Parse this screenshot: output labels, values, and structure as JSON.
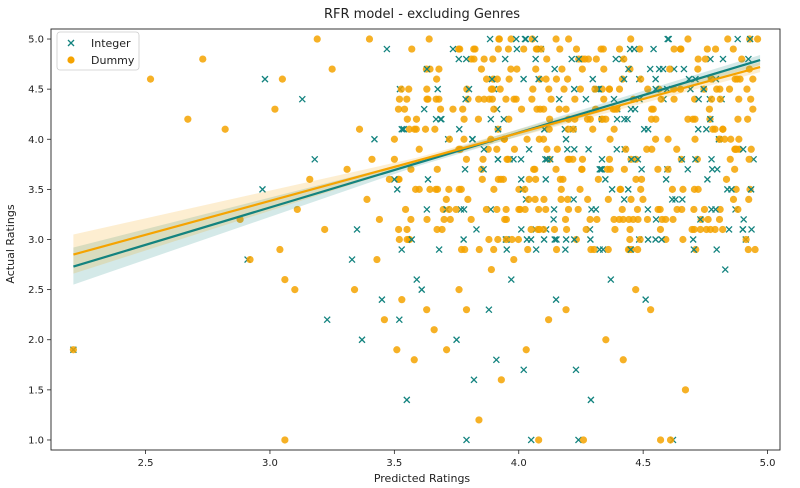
{
  "chart_data": {
    "type": "scatter",
    "title": "RFR model - excluding Genres",
    "xlabel": "Predicted Ratings",
    "ylabel": "Actual Ratings",
    "xlim": [
      2.12,
      5.05
    ],
    "ylim": [
      0.9,
      5.1
    ],
    "xticks": [
      2.5,
      3.0,
      3.5,
      4.0,
      4.5,
      5.0
    ],
    "xtick_labels": [
      "2.5",
      "3.0",
      "3.5",
      "4.0",
      "4.5",
      "5.0"
    ],
    "yticks": [
      1.0,
      1.5,
      2.0,
      2.5,
      3.0,
      3.5,
      4.0,
      4.5,
      5.0
    ],
    "ytick_labels": [
      "1.0",
      "1.5",
      "2.0",
      "2.5",
      "3.0",
      "3.5",
      "4.0",
      "4.5",
      "5.0"
    ],
    "grid": false,
    "legend_position": "top-left",
    "series": [
      {
        "name": "Integer",
        "marker": "x",
        "color": "#13837f",
        "points": [
          [
            2.21,
            1.9
          ],
          [
            2.97,
            3.5
          ],
          [
            2.98,
            4.6
          ],
          [
            2.91,
            2.8
          ],
          [
            3.13,
            4.4
          ],
          [
            3.18,
            3.8
          ],
          [
            3.23,
            2.2
          ],
          [
            3.33,
            2.8
          ],
          [
            3.37,
            2.0
          ],
          [
            3.45,
            2.4
          ],
          [
            3.52,
            2.2
          ],
          [
            3.55,
            1.4
          ],
          [
            3.57,
            3.0
          ],
          [
            3.61,
            2.5
          ],
          [
            3.68,
            2.9
          ],
          [
            3.75,
            2.0
          ],
          [
            3.79,
            1.0
          ],
          [
            3.82,
            1.6
          ],
          [
            3.88,
            2.3
          ],
          [
            3.91,
            1.8
          ],
          [
            3.97,
            2.6
          ],
          [
            4.02,
            1.7
          ],
          [
            4.05,
            1.0
          ],
          [
            4.11,
            3.1
          ],
          [
            4.15,
            2.4
          ],
          [
            4.23,
            1.7
          ],
          [
            4.24,
            1.0
          ],
          [
            4.29,
            1.4
          ],
          [
            4.37,
            2.6
          ],
          [
            4.45,
            2.9
          ],
          [
            4.51,
            2.4
          ],
          [
            4.62,
            1.0
          ],
          [
            4.71,
            3.8
          ],
          [
            4.83,
            2.7
          ],
          [
            4.88,
            5.0
          ],
          [
            3.42,
            4.0
          ],
          [
            3.5,
            3.6
          ],
          [
            3.62,
            4.3
          ],
          [
            3.71,
            3.3
          ],
          [
            3.8,
            4.5
          ],
          [
            3.86,
            3.9
          ],
          [
            3.94,
            4.2
          ],
          [
            4.01,
            3.6
          ],
          [
            4.08,
            4.6
          ],
          [
            4.14,
            3.2
          ],
          [
            4.19,
            4.0
          ],
          [
            4.27,
            4.4
          ],
          [
            4.33,
            3.7
          ],
          [
            4.39,
            4.8
          ],
          [
            4.44,
            3.5
          ],
          [
            4.52,
            4.1
          ],
          [
            4.58,
            4.7
          ],
          [
            4.63,
            3.4
          ],
          [
            4.69,
            4.5
          ],
          [
            4.77,
            4.2
          ],
          [
            4.93,
            5.0
          ],
          [
            3.47,
            4.9
          ],
          [
            3.99,
            5.0
          ],
          [
            3.35,
            3.1
          ],
          [
            3.59,
            2.6
          ],
          [
            3.83,
            3.1
          ],
          [
            4.07,
            2.9
          ],
          [
            4.31,
            3.3
          ],
          [
            4.55,
            3.0
          ]
        ]
      },
      {
        "name": "Dummy",
        "marker": "o",
        "color": "#f5a300",
        "points": [
          [
            2.21,
            1.9
          ],
          [
            2.52,
            4.6
          ],
          [
            2.67,
            4.2
          ],
          [
            2.73,
            4.8
          ],
          [
            2.82,
            4.1
          ],
          [
            2.88,
            3.2
          ],
          [
            2.92,
            2.8
          ],
          [
            3.02,
            4.3
          ],
          [
            3.04,
            2.9
          ],
          [
            3.06,
            2.6
          ],
          [
            3.06,
            1.0
          ],
          [
            3.1,
            2.5
          ],
          [
            3.05,
            4.6
          ],
          [
            3.11,
            3.3
          ],
          [
            3.16,
            3.6
          ],
          [
            3.19,
            5.0
          ],
          [
            3.22,
            3.1
          ],
          [
            3.25,
            4.7
          ],
          [
            3.31,
            3.7
          ],
          [
            3.34,
            2.5
          ],
          [
            3.39,
            3.4
          ],
          [
            3.43,
            2.8
          ],
          [
            3.46,
            2.2
          ],
          [
            3.51,
            1.9
          ],
          [
            3.53,
            2.4
          ],
          [
            3.58,
            1.8
          ],
          [
            3.63,
            2.3
          ],
          [
            3.66,
            2.1
          ],
          [
            3.71,
            1.9
          ],
          [
            3.76,
            2.5
          ],
          [
            3.79,
            2.3
          ],
          [
            3.84,
            1.2
          ],
          [
            3.89,
            2.7
          ],
          [
            3.93,
            1.6
          ],
          [
            3.98,
            2.8
          ],
          [
            4.03,
            1.9
          ],
          [
            4.08,
            1.0
          ],
          [
            4.12,
            2.2
          ],
          [
            4.19,
            2.3
          ],
          [
            4.26,
            1.0
          ],
          [
            4.35,
            2.0
          ],
          [
            4.42,
            1.8
          ],
          [
            4.47,
            2.5
          ],
          [
            4.53,
            2.3
          ],
          [
            4.57,
            1.0
          ],
          [
            4.61,
            1.0
          ],
          [
            4.67,
            1.5
          ],
          [
            4.73,
            3.1
          ],
          [
            4.78,
            4.1
          ],
          [
            4.85,
            3.8
          ],
          [
            4.92,
            4.2
          ],
          [
            4.96,
            5.0
          ],
          [
            3.36,
            4.1
          ],
          [
            3.41,
            3.8
          ],
          [
            3.48,
            3.6
          ],
          [
            3.55,
            4.4
          ],
          [
            3.6,
            3.9
          ],
          [
            3.67,
            4.6
          ],
          [
            3.72,
            3.3
          ],
          [
            3.78,
            4.0
          ],
          [
            3.85,
            4.7
          ],
          [
            3.9,
            3.5
          ],
          [
            3.96,
            4.2
          ],
          [
            4.02,
            4.9
          ],
          [
            4.06,
            3.7
          ],
          [
            4.13,
            4.4
          ],
          [
            4.17,
            3.4
          ],
          [
            4.22,
            4.1
          ],
          [
            4.28,
            4.8
          ],
          [
            4.32,
            3.6
          ],
          [
            4.38,
            4.3
          ],
          [
            4.43,
            3.9
          ],
          [
            4.49,
            4.6
          ],
          [
            4.55,
            4.0
          ],
          [
            4.6,
            3.7
          ],
          [
            4.65,
            4.5
          ],
          [
            4.7,
            4.2
          ],
          [
            4.75,
            4.8
          ],
          [
            4.81,
            4.4
          ],
          [
            4.87,
            4.6
          ],
          [
            3.44,
            3.2
          ],
          [
            3.52,
            3.0
          ],
          [
            3.6,
            3.5
          ],
          [
            3.7,
            3.2
          ],
          [
            3.77,
            2.9
          ],
          [
            3.87,
            3.3
          ],
          [
            3.95,
            3.0
          ],
          [
            4.04,
            3.4
          ],
          [
            4.1,
            3.1
          ],
          [
            4.2,
            3.3
          ],
          [
            4.29,
            2.9
          ],
          [
            4.36,
            3.4
          ],
          [
            4.46,
            3.2
          ],
          [
            4.56,
            3.3
          ],
          [
            4.66,
            3.5
          ],
          [
            3.4,
            5.0
          ],
          [
            3.64,
            5.0
          ],
          [
            3.92,
            5.0
          ],
          [
            4.15,
            5.0
          ],
          [
            4.45,
            5.0
          ],
          [
            4.68,
            5.0
          ],
          [
            4.84,
            5.0
          ],
          [
            3.57,
            4.9
          ],
          [
            3.82,
            4.8
          ],
          [
            4.09,
            4.9
          ],
          [
            4.34,
            4.9
          ]
        ]
      }
    ],
    "regression_lines": [
      {
        "series": "Integer",
        "color": "#13837f",
        "x": [
          2.21,
          4.97
        ],
        "y": [
          2.73,
          4.79
        ],
        "ci_upper": [
          2.92,
          4.84
        ],
        "ci_lower": [
          2.55,
          4.74
        ]
      },
      {
        "series": "Dummy",
        "color": "#f5a300",
        "x": [
          2.21,
          4.97
        ],
        "y": [
          2.85,
          4.72
        ],
        "ci_upper": [
          3.05,
          4.77
        ],
        "ci_lower": [
          2.66,
          4.67
        ]
      }
    ],
    "dense_region": {
      "x": [
        3.5,
        4.95
      ],
      "y": [
        2.9,
        5.0
      ]
    }
  }
}
